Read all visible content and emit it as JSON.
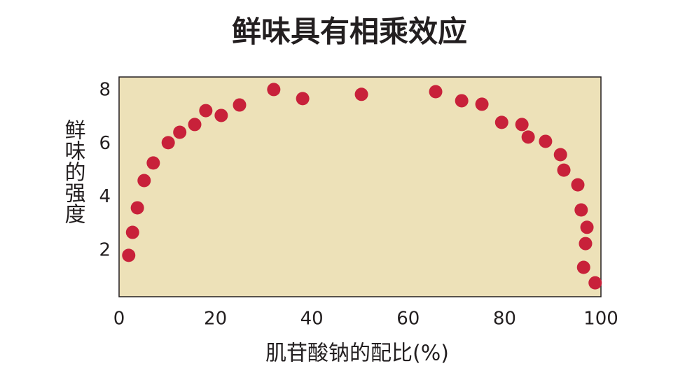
{
  "chart_data": {
    "type": "scatter",
    "title": "鲜味具有相乘效应",
    "x_label": "肌苷酸钠的配比(%)",
    "y_label": "鲜味的强度",
    "color": "#c8213a",
    "plot_background": "#ede1b8",
    "x": [
      2.0,
      2.8,
      3.8,
      5.2,
      7.1,
      10.2,
      12.6,
      15.7,
      18.0,
      21.2,
      25.0,
      32.1,
      38.1,
      50.3,
      65.7,
      71.1,
      75.3,
      79.4,
      83.6,
      84.9,
      88.5,
      91.6,
      92.3,
      95.2,
      95.9,
      97.1,
      96.8,
      96.4,
      98.8
    ],
    "values": [
      1.82,
      2.68,
      3.6,
      4.62,
      5.28,
      6.04,
      6.43,
      6.72,
      7.24,
      7.06,
      7.45,
      8.03,
      7.69,
      7.85,
      7.95,
      7.61,
      7.48,
      6.8,
      6.72,
      6.25,
      6.09,
      5.59,
      5.01,
      4.46,
      3.52,
      2.87,
      2.26,
      1.37,
      0.79
    ],
    "xlim": [
      0,
      100
    ],
    "xticks": [
      0,
      20,
      40,
      60,
      80,
      100
    ],
    "ylim": [
      0.27,
      8.5
    ],
    "yticks": [
      2,
      4,
      6,
      8
    ],
    "grid": false
  }
}
